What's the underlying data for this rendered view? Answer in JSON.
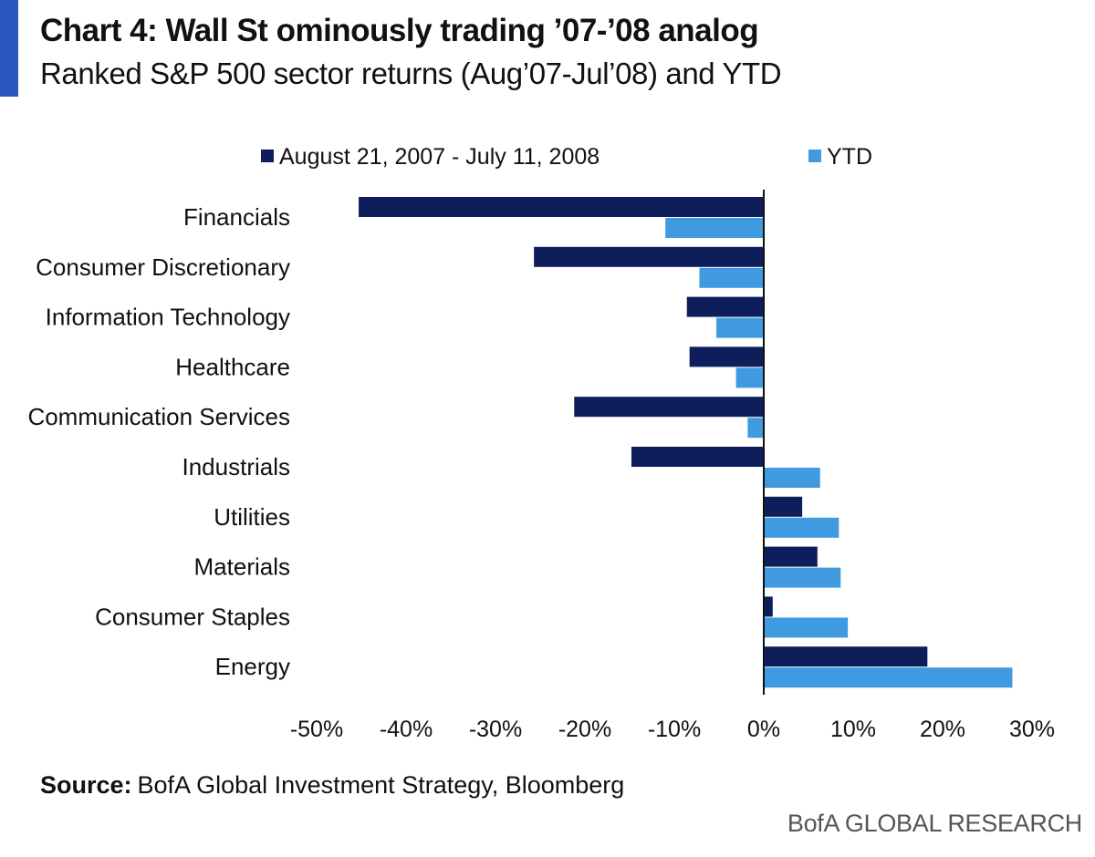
{
  "header": {
    "title": "Chart 4: Wall St ominously trading ’07-’08 analog",
    "subtitle": "Ranked S&P 500 sector returns (Aug’07-Jul’08) and YTD"
  },
  "legend": [
    {
      "label": "August 21, 2007 - July 11, 2008",
      "color": "#0e1e5b"
    },
    {
      "label": "YTD",
      "color": "#3f9ae0"
    }
  ],
  "chart_data": {
    "type": "bar",
    "orientation": "horizontal",
    "categories": [
      "Financials",
      "Consumer Discretionary",
      "Information Technology",
      "Healthcare",
      "Communication Services",
      "Industrials",
      "Utilities",
      "Materials",
      "Consumer Staples",
      "Energy"
    ],
    "series": [
      {
        "name": "August 21, 2007 - July 11, 2008",
        "color": "#0e1e5b",
        "values": [
          -45.3,
          -25.7,
          -8.6,
          -8.3,
          -21.2,
          -14.8,
          4.3,
          6.0,
          1.0,
          18.3
        ]
      },
      {
        "name": "YTD",
        "color": "#3f9ae0",
        "values": [
          -11.0,
          -7.2,
          -5.3,
          -3.1,
          -1.8,
          6.3,
          8.4,
          8.6,
          9.4,
          27.8
        ]
      }
    ],
    "xlim": [
      -50,
      30
    ],
    "xticks": [
      -50,
      -40,
      -30,
      -20,
      -10,
      0,
      10,
      20,
      30
    ],
    "xtick_labels": [
      "-50%",
      "-40%",
      "-30%",
      "-20%",
      "-10%",
      "0%",
      "10%",
      "20%",
      "30%"
    ],
    "xlabel": "",
    "ylabel": "",
    "grid": false,
    "legend_position": "top"
  },
  "footer": {
    "source_label": "Source:",
    "source_text": "BofA Global Investment Strategy, Bloomberg",
    "brand": "BofA GLOBAL RESEARCH"
  }
}
